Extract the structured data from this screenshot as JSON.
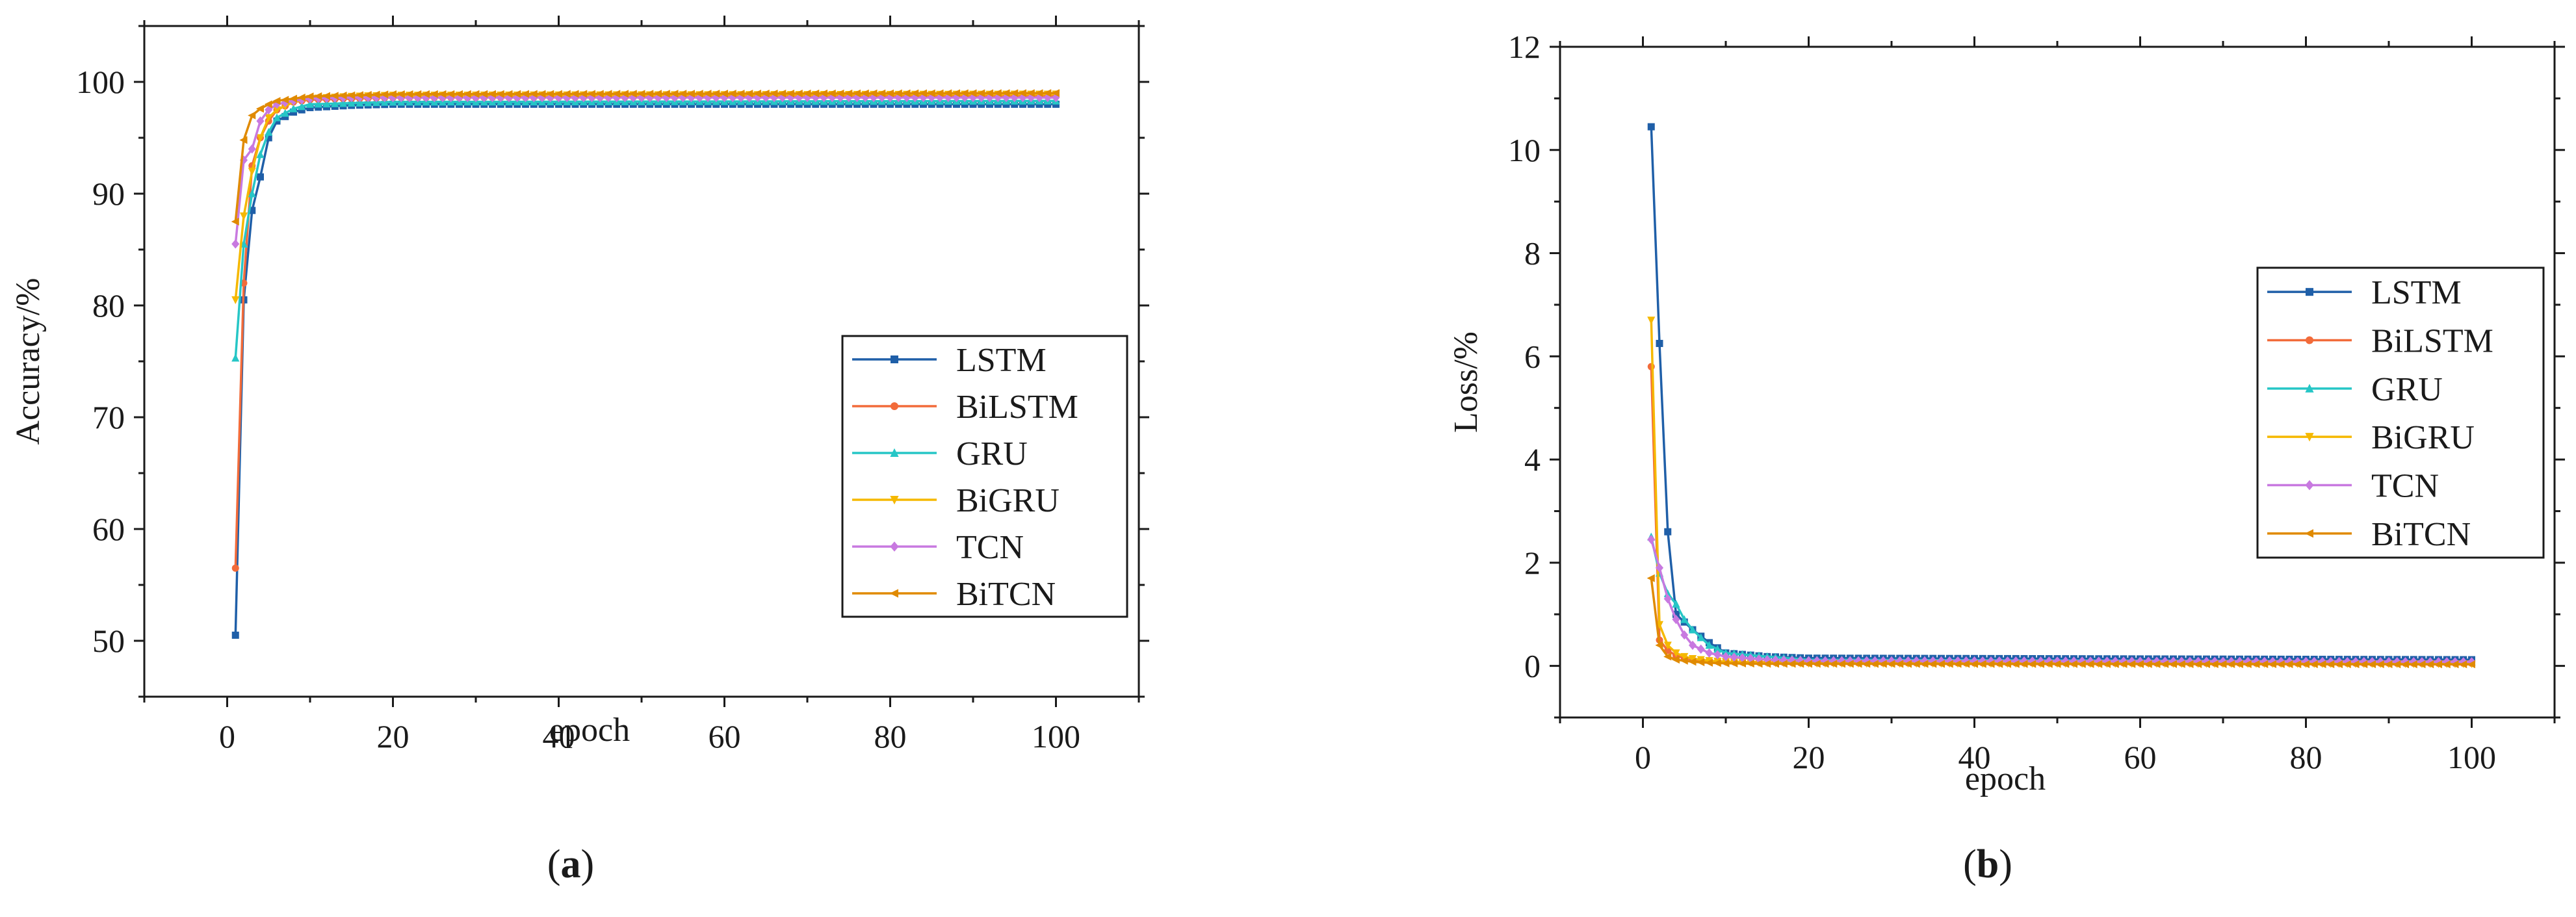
{
  "chart_data": [
    {
      "type": "line",
      "panel_label": "(a)",
      "panel_letter": "a",
      "xlabel": "epoch",
      "ylabel": "Accuracy/%",
      "xlim": [
        -10,
        110
      ],
      "ylim": [
        45,
        105
      ],
      "xticks": [
        0,
        20,
        40,
        60,
        80,
        100
      ],
      "xtick_labels": [
        "0",
        "20",
        "40",
        "60",
        "80",
        "100"
      ],
      "yticks": [
        50,
        60,
        70,
        80,
        90,
        100
      ],
      "ytick_labels": [
        "50",
        "60",
        "70",
        "80",
        "90",
        "100"
      ],
      "grid": false,
      "legend_position": "lower-right",
      "series": [
        {
          "name": "LSTM",
          "color": "#1f5fa8",
          "marker": "square",
          "x": [
            1,
            2,
            3,
            4,
            5,
            6,
            8,
            10,
            15,
            20,
            100
          ],
          "values": [
            50.5,
            80.5,
            88.5,
            91.5,
            95.0,
            96.5,
            97.3,
            97.7,
            97.9,
            98.0,
            98.0
          ]
        },
        {
          "name": "BiLSTM",
          "color": "#f26b3a",
          "marker": "circle",
          "x": [
            1,
            2,
            3,
            4,
            5,
            6,
            8,
            10,
            15,
            20,
            100
          ],
          "values": [
            56.5,
            82.0,
            92.5,
            95.0,
            96.5,
            97.5,
            98.2,
            98.4,
            98.5,
            98.6,
            98.7
          ]
        },
        {
          "name": "GRU",
          "color": "#26c6c6",
          "marker": "triangle",
          "x": [
            1,
            2,
            3,
            4,
            5,
            6,
            8,
            10,
            15,
            20,
            100
          ],
          "values": [
            75.3,
            85.5,
            90.0,
            93.5,
            95.5,
            96.8,
            97.6,
            98.0,
            98.1,
            98.2,
            98.3
          ]
        },
        {
          "name": "BiGRU",
          "color": "#f5b800",
          "marker": "triangle-down",
          "x": [
            1,
            2,
            3,
            4,
            5,
            6,
            8,
            10,
            15,
            20,
            100
          ],
          "values": [
            80.5,
            88.0,
            92.0,
            95.0,
            96.8,
            97.5,
            98.2,
            98.5,
            98.7,
            98.8,
            98.9
          ]
        },
        {
          "name": "TCN",
          "color": "#c879e0",
          "marker": "diamond",
          "x": [
            1,
            2,
            3,
            4,
            5,
            6,
            8,
            10,
            15,
            20,
            100
          ],
          "values": [
            85.5,
            93.0,
            94.0,
            96.5,
            97.5,
            98.0,
            98.3,
            98.5,
            98.6,
            98.6,
            98.6
          ]
        },
        {
          "name": "BiTCN",
          "color": "#e08a00",
          "marker": "left-triangle",
          "x": [
            1,
            2,
            3,
            4,
            5,
            6,
            8,
            10,
            15,
            20,
            100
          ],
          "values": [
            87.5,
            94.8,
            97.0,
            97.6,
            98.0,
            98.3,
            98.5,
            98.7,
            98.8,
            98.9,
            99.0
          ]
        }
      ]
    },
    {
      "type": "line",
      "panel_label": "(b)",
      "panel_letter": "b",
      "xlabel": "epoch",
      "ylabel": "Loss/%",
      "xlim": [
        -10,
        110
      ],
      "ylim": [
        -1,
        12
      ],
      "xticks": [
        0,
        20,
        40,
        60,
        80,
        100
      ],
      "xtick_labels": [
        "0",
        "20",
        "40",
        "60",
        "80",
        "100"
      ],
      "yticks": [
        0,
        2,
        4,
        6,
        8,
        10,
        12
      ],
      "ytick_labels": [
        "0",
        "2",
        "4",
        "6",
        "8",
        "10",
        "12"
      ],
      "grid": false,
      "legend_position": "upper-right",
      "series": [
        {
          "name": "LSTM",
          "color": "#1f5fa8",
          "marker": "square",
          "x": [
            1,
            2,
            3,
            4,
            5,
            6,
            8,
            10,
            15,
            20,
            100
          ],
          "values": [
            10.45,
            6.25,
            2.6,
            1.0,
            0.85,
            0.7,
            0.45,
            0.25,
            0.18,
            0.15,
            0.12
          ]
        },
        {
          "name": "BiLSTM",
          "color": "#f26b3a",
          "marker": "circle",
          "x": [
            1,
            2,
            3,
            4,
            5,
            6,
            8,
            10,
            15,
            20,
            100
          ],
          "values": [
            5.8,
            0.5,
            0.3,
            0.2,
            0.15,
            0.12,
            0.1,
            0.08,
            0.07,
            0.06,
            0.05
          ]
        },
        {
          "name": "GRU",
          "color": "#26c6c6",
          "marker": "triangle",
          "x": [
            1,
            2,
            3,
            4,
            5,
            6,
            8,
            10,
            15,
            20,
            100
          ],
          "values": [
            2.5,
            1.8,
            1.4,
            1.2,
            0.9,
            0.7,
            0.4,
            0.25,
            0.18,
            0.12,
            0.08
          ]
        },
        {
          "name": "BiGRU",
          "color": "#f5b800",
          "marker": "triangle-down",
          "x": [
            1,
            2,
            3,
            4,
            5,
            6,
            8,
            10,
            15,
            20,
            100
          ],
          "values": [
            6.7,
            0.8,
            0.4,
            0.25,
            0.18,
            0.14,
            0.1,
            0.08,
            0.06,
            0.05,
            0.04
          ]
        },
        {
          "name": "TCN",
          "color": "#c879e0",
          "marker": "diamond",
          "x": [
            1,
            2,
            3,
            4,
            5,
            6,
            8,
            10,
            15,
            20,
            100
          ],
          "values": [
            2.45,
            1.9,
            1.3,
            0.9,
            0.6,
            0.4,
            0.25,
            0.18,
            0.12,
            0.1,
            0.08
          ]
        },
        {
          "name": "BiTCN",
          "color": "#e08a00",
          "marker": "left-triangle",
          "x": [
            1,
            2,
            3,
            4,
            5,
            6,
            8,
            10,
            15,
            20,
            100
          ],
          "values": [
            1.7,
            0.4,
            0.18,
            0.12,
            0.1,
            0.08,
            0.06,
            0.05,
            0.04,
            0.04,
            0.03
          ]
        }
      ]
    }
  ]
}
